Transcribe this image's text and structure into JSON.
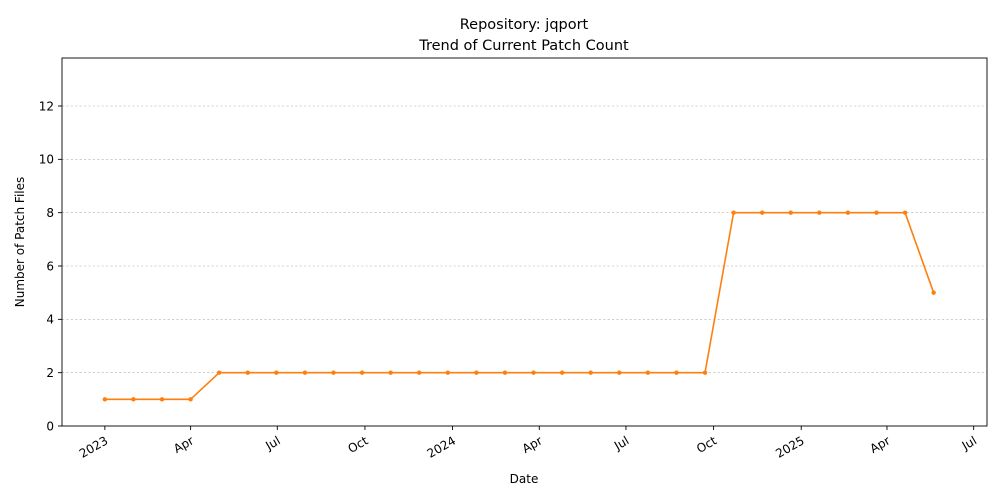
{
  "chart_data": {
    "type": "line",
    "title_lines": [
      "Repository: jqport",
      "Trend of Current Patch Count"
    ],
    "xlabel": "Date",
    "ylabel": "Number of Patch Files",
    "ylim": [
      0,
      13.8
    ],
    "yticks": [
      0,
      2,
      4,
      6,
      8,
      10,
      12
    ],
    "xlim": [
      "2022-11-17",
      "2025-07-15"
    ],
    "xticks": [
      {
        "date": "2023-01-01",
        "label": "2023"
      },
      {
        "date": "2023-04-01",
        "label": "Apr"
      },
      {
        "date": "2023-07-01",
        "label": "Jul"
      },
      {
        "date": "2023-10-01",
        "label": "Oct"
      },
      {
        "date": "2024-01-01",
        "label": "2024"
      },
      {
        "date": "2024-04-01",
        "label": "Apr"
      },
      {
        "date": "2024-07-01",
        "label": "Jul"
      },
      {
        "date": "2024-10-01",
        "label": "Oct"
      },
      {
        "date": "2025-01-01",
        "label": "2025"
      },
      {
        "date": "2025-04-01",
        "label": "Apr"
      },
      {
        "date": "2025-07-01",
        "label": "Jul"
      }
    ],
    "grid": "y",
    "color": "#ff7f0e",
    "series": [
      {
        "x": [
          "2023-01-01",
          "2023-01-31",
          "2023-03-02",
          "2023-04-01",
          "2023-05-01",
          "2023-05-31",
          "2023-06-30",
          "2023-07-30",
          "2023-08-29",
          "2023-09-28",
          "2023-10-28",
          "2023-11-27",
          "2023-12-27",
          "2024-01-26",
          "2024-02-25",
          "2024-03-26",
          "2024-04-25",
          "2024-05-25",
          "2024-06-24",
          "2024-07-24",
          "2024-08-23",
          "2024-09-22",
          "2024-10-22",
          "2024-11-21",
          "2024-12-21",
          "2025-01-20",
          "2025-02-19",
          "2025-03-21",
          "2025-04-20",
          "2025-05-20"
        ],
        "y": [
          1,
          1,
          1,
          1,
          2,
          2,
          2,
          2,
          2,
          2,
          2,
          2,
          2,
          2,
          2,
          2,
          2,
          2,
          2,
          2,
          2,
          2,
          8,
          8,
          8,
          8,
          8,
          8,
          8,
          5
        ]
      }
    ]
  }
}
